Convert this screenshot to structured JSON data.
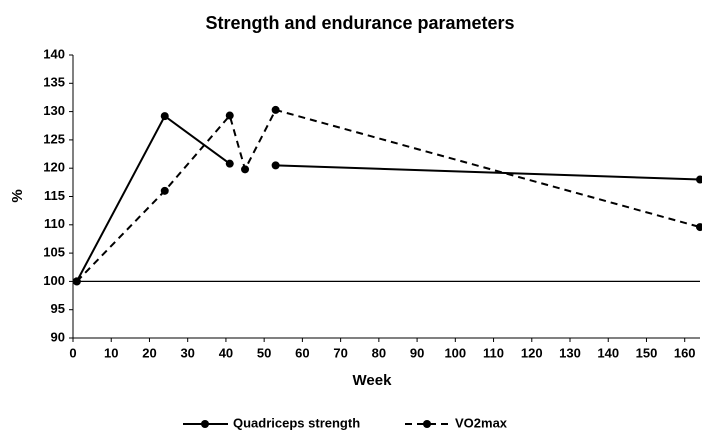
{
  "chart_data": {
    "type": "line",
    "title": "Strength and endurance parameters",
    "x_label": "Week",
    "y_label": "%",
    "x": [
      1,
      24,
      41,
      45,
      53,
      164
    ],
    "series": [
      {
        "name": "Quadriceps strength",
        "color": "#000000",
        "dash": false,
        "values": [
          100,
          129.2,
          120.8,
          null,
          120.5,
          118
        ]
      },
      {
        "name": "VO2max",
        "color": "#000000",
        "dash": true,
        "values": [
          100,
          116,
          129.3,
          119.8,
          130.3,
          109.6
        ]
      }
    ],
    "xlim": [
      0,
      164
    ],
    "xticks": [
      0,
      10,
      20,
      30,
      40,
      50,
      60,
      70,
      80,
      90,
      100,
      110,
      120,
      130,
      140,
      150,
      160
    ],
    "ylim": [
      90,
      140
    ],
    "yticks": [
      90,
      95,
      100,
      105,
      110,
      115,
      120,
      125,
      130,
      135,
      140
    ],
    "reference_line": 100,
    "grid": false,
    "legend": "bottom"
  }
}
